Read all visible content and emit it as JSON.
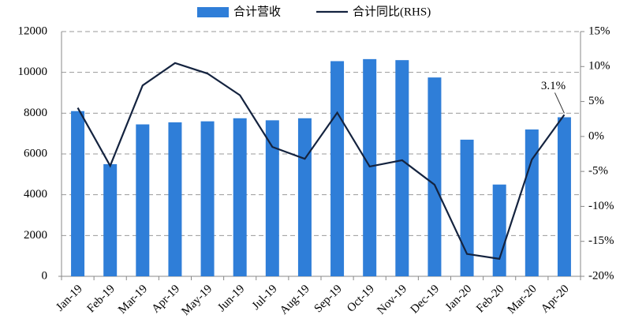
{
  "chart_data": {
    "type": "bar_line",
    "categories": [
      "Jan-19",
      "Feb-19",
      "Mar-19",
      "Apr-19",
      "May-19",
      "Jun-19",
      "Jul-19",
      "Aug-19",
      "Sep-19",
      "Oct-19",
      "Nov-19",
      "Dec-19",
      "Jan-20",
      "Feb-20",
      "Mar-20",
      "Apr-20"
    ],
    "series": [
      {
        "name": "合计营收",
        "type": "bar",
        "color": "#2f7ed8",
        "values": [
          8100,
          5500,
          7450,
          7550,
          7600,
          7750,
          7650,
          7750,
          10550,
          10650,
          10600,
          9750,
          6700,
          4500,
          7200,
          7800
        ]
      },
      {
        "name": "合计同比(RHS)",
        "type": "line",
        "axis": "y2",
        "color": "#14233f",
        "values": [
          4.1,
          -4.2,
          7.3,
          10.5,
          9.0,
          5.9,
          -1.5,
          -3.2,
          3.4,
          -4.3,
          -3.4,
          -6.9,
          -16.8,
          -17.5,
          -3.3,
          3.1
        ],
        "value_labels": [
          null,
          null,
          null,
          null,
          null,
          null,
          null,
          null,
          null,
          null,
          null,
          null,
          null,
          null,
          null,
          "3.1%"
        ]
      }
    ],
    "ylim": [
      0,
      12000
    ],
    "yticks": [
      0,
      2000,
      4000,
      6000,
      8000,
      10000,
      12000
    ],
    "y2lim": [
      -20,
      15
    ],
    "y2ticks": [
      {
        "value": -20,
        "label": "-20%"
      },
      {
        "value": -15,
        "label": "-15%"
      },
      {
        "value": -10,
        "label": "-10%"
      },
      {
        "value": -5,
        "label": "-5%"
      },
      {
        "value": 0,
        "label": "0%"
      },
      {
        "value": 5,
        "label": "5%"
      },
      {
        "value": 10,
        "label": "10%"
      },
      {
        "value": 15,
        "label": "15%"
      }
    ],
    "grid": true,
    "legend": "top"
  }
}
